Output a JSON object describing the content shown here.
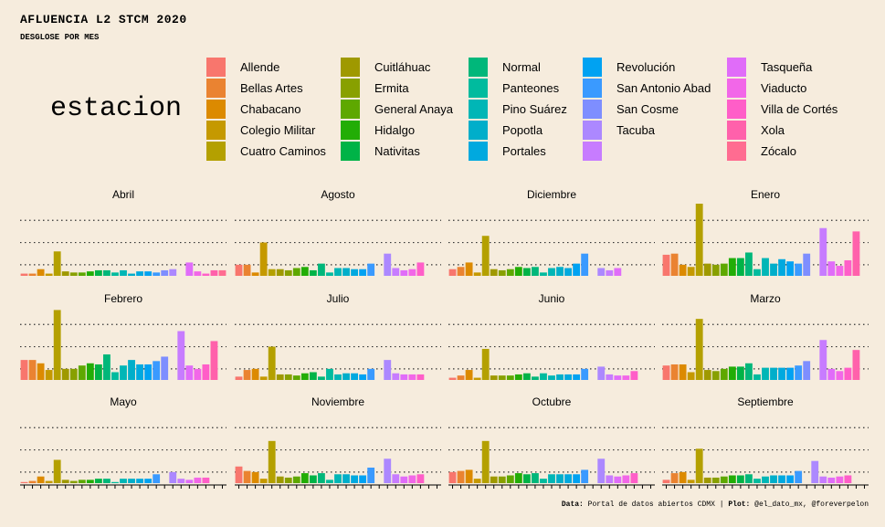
{
  "title": "AFLUENCIA L2 STCM 2020",
  "subtitle": "DESGLOSE POR MES",
  "legend_title": "estacion",
  "caption": {
    "data_label": "Data:",
    "data_text": "Portal de datos abiertos CDMX",
    "sep": "|",
    "plot_label": "Plot:",
    "plot_text": "@el_dato_mx, @foreverpelon"
  },
  "chart_data": {
    "type": "bar",
    "facet_by": "mes",
    "stations": [
      "Allende",
      "Bellas Artes",
      "Chabacano",
      "Colegio Militar",
      "Cuatro Caminos",
      "Cuitláhuac",
      "Ermita",
      "General Anaya",
      "Hidalgo",
      "Nativitas",
      "Normal",
      "Panteones",
      "Pino Suárez",
      "Popotla",
      "Portales",
      "Revolución",
      "San Antonio Abad",
      "San Cosme",
      "Tacuba",
      "",
      "Tasqueña",
      "Viaducto",
      "Villa de Cortés",
      "Xola",
      "Zócalo"
    ],
    "colors": [
      "#F8766D",
      "#EA8331",
      "#DC8A00",
      "#C59900",
      "#B4A000",
      "#9F9900",
      "#88A000",
      "#5EA800",
      "#22AD06",
      "#00B347",
      "#00B77A",
      "#00BB9E",
      "#00B6B6",
      "#00AECA",
      "#00A9DF",
      "#00A2F2",
      "#3A9AFF",
      "#7E8EFF",
      "#AC88FF",
      "#C77CFF",
      "#E06CF9",
      "#F267E8",
      "#FF5EC8",
      "#FF61AB",
      "#FF6C91"
    ],
    "legend_label_keys": [
      "Allende",
      "Bellas Artes",
      "Chabacano",
      "Colegio Militar",
      "Cuatro Caminos",
      "Cuitláhuac",
      "Ermita",
      "General Anaya",
      "Hidalgo",
      "Nativitas",
      "Normal",
      "Panteones",
      "Pino Suárez",
      "Popotla",
      "Portales",
      "Revolución",
      "San Antonio Abad",
      "San Cosme",
      "Tacuba",
      "",
      "Tasqueña",
      "Viaducto",
      "Villa de Cortés",
      "Xola",
      "Zócalo"
    ],
    "ylim": [
      0,
      6.5
    ],
    "grid": true,
    "legend_position": "top",
    "facets": [
      {
        "name": "Abril",
        "values": [
          0.2,
          0.2,
          0.6,
          0.2,
          2.2,
          0.4,
          0.3,
          0.3,
          0.4,
          0.5,
          0.5,
          0.3,
          0.5,
          0.2,
          0.4,
          0.4,
          0.3,
          0.5,
          0.6,
          0,
          1.2,
          0.4,
          0.2,
          0.5,
          0.5
        ]
      },
      {
        "name": "Agosto",
        "values": [
          1.0,
          1.0,
          0.3,
          3.0,
          0.6,
          0.6,
          0.5,
          0.7,
          0.8,
          0.5,
          1.1,
          0.3,
          0.7,
          0.7,
          0.6,
          0.6,
          1.1,
          0,
          2.0,
          0.7,
          0.5,
          0.6,
          1.2,
          0,
          0
        ]
      },
      {
        "name": "Diciembre",
        "values": [
          0.6,
          0.8,
          1.2,
          0.3,
          3.6,
          0.6,
          0.5,
          0.6,
          0.8,
          0.7,
          0.8,
          0.3,
          0.7,
          0.8,
          0.7,
          1.1,
          2.0,
          0,
          0.7,
          0.5,
          0.7,
          0,
          0,
          0,
          0
        ]
      },
      {
        "name": "Enero",
        "values": [
          1.9,
          2.0,
          1.0,
          0.8,
          6.5,
          1.1,
          1.0,
          1.1,
          1.6,
          1.6,
          2.1,
          0.6,
          1.6,
          1.1,
          1.5,
          1.3,
          1.1,
          2.0,
          0,
          4.3,
          1.3,
          0.9,
          1.4,
          4.0,
          0
        ]
      },
      {
        "name": "Febrero",
        "values": [
          1.8,
          1.8,
          1.5,
          0.9,
          6.3,
          1.0,
          1.0,
          1.3,
          1.5,
          1.4,
          2.3,
          0.7,
          1.3,
          1.8,
          1.4,
          1.4,
          1.7,
          2.1,
          0,
          4.4,
          1.3,
          1.0,
          1.4,
          3.5,
          0
        ]
      },
      {
        "name": "Julio",
        "values": [
          0.3,
          0.9,
          1.0,
          0.3,
          3.0,
          0.5,
          0.5,
          0.4,
          0.6,
          0.7,
          0.3,
          1.0,
          0.5,
          0.6,
          0.6,
          0.5,
          1.0,
          0,
          1.8,
          0.6,
          0.5,
          0.5,
          0.5,
          0,
          0
        ]
      },
      {
        "name": "Junio",
        "values": [
          0.2,
          0.4,
          0.9,
          0.2,
          2.8,
          0.4,
          0.4,
          0.4,
          0.5,
          0.6,
          0.3,
          0.6,
          0.4,
          0.5,
          0.5,
          0.5,
          1.0,
          0,
          1.2,
          0.5,
          0.4,
          0.4,
          0.8,
          0,
          0
        ]
      },
      {
        "name": "Marzo",
        "values": [
          1.3,
          1.4,
          1.4,
          0.7,
          5.5,
          0.9,
          0.8,
          1.0,
          1.2,
          1.2,
          1.5,
          0.5,
          1.1,
          1.1,
          1.1,
          1.1,
          1.3,
          1.7,
          0,
          3.6,
          1.0,
          0.8,
          1.1,
          2.7,
          0
        ]
      },
      {
        "name": "Mayo",
        "values": [
          0.1,
          0.2,
          0.6,
          0.2,
          2.1,
          0.3,
          0.2,
          0.3,
          0.3,
          0.4,
          0.4,
          0.1,
          0.4,
          0.4,
          0.4,
          0.4,
          0.8,
          0,
          1.0,
          0.4,
          0.3,
          0.5,
          0.5,
          0,
          0
        ]
      },
      {
        "name": "Noviembre",
        "values": [
          1.5,
          1.1,
          1.0,
          0.4,
          3.8,
          0.6,
          0.5,
          0.6,
          0.9,
          0.7,
          0.9,
          0.3,
          0.8,
          0.8,
          0.7,
          0.7,
          1.4,
          0,
          2.2,
          0.8,
          0.6,
          0.7,
          0.8,
          0,
          0
        ]
      },
      {
        "name": "Octubre",
        "values": [
          1.0,
          1.1,
          1.2,
          0.4,
          3.8,
          0.6,
          0.6,
          0.7,
          0.9,
          0.8,
          0.9,
          0.4,
          0.8,
          0.8,
          0.8,
          0.8,
          1.2,
          0,
          2.2,
          0.7,
          0.6,
          0.7,
          0.9,
          0,
          0
        ]
      },
      {
        "name": "Septiembre",
        "values": [
          0.3,
          0.9,
          1.0,
          0.3,
          3.1,
          0.5,
          0.5,
          0.6,
          0.7,
          0.7,
          0.8,
          0.4,
          0.6,
          0.7,
          0.7,
          0.7,
          1.1,
          0,
          2.0,
          0.6,
          0.5,
          0.6,
          0.7,
          0,
          0
        ]
      }
    ]
  }
}
